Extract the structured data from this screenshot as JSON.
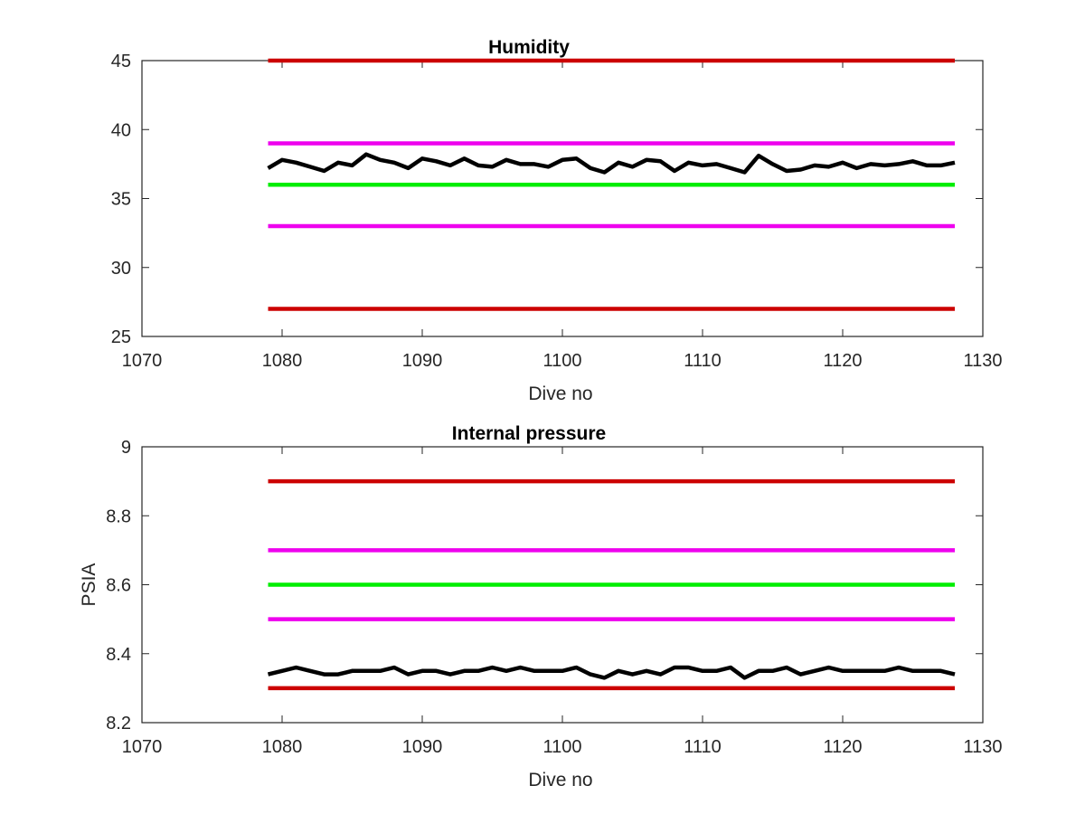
{
  "chart_data": [
    {
      "type": "line",
      "title": "Humidity",
      "xlabel": "Dive no",
      "ylabel": "",
      "xlim": [
        1070,
        1130
      ],
      "ylim": [
        25,
        45
      ],
      "xticks": [
        "1070",
        "1080",
        "1090",
        "1100",
        "1110",
        "1120",
        "1130"
      ],
      "yticks": [
        "25",
        "30",
        "35",
        "40",
        "45"
      ],
      "grid": false,
      "series": [
        {
          "color": "#cc0000",
          "x": [
            1079,
            1128
          ],
          "y": [
            45,
            45
          ]
        },
        {
          "color": "#ee00ee",
          "x": [
            1079,
            1128
          ],
          "y": [
            39,
            39
          ]
        },
        {
          "color": "#00ee00",
          "x": [
            1079,
            1128
          ],
          "y": [
            36,
            36
          ]
        },
        {
          "color": "#ee00ee",
          "x": [
            1079,
            1128
          ],
          "y": [
            33,
            33
          ]
        },
        {
          "color": "#cc0000",
          "x": [
            1079,
            1128
          ],
          "y": [
            27,
            27
          ]
        },
        {
          "color": "#000000",
          "x": [
            1079,
            1080,
            1081,
            1082,
            1083,
            1084,
            1085,
            1086,
            1087,
            1088,
            1089,
            1090,
            1091,
            1092,
            1093,
            1094,
            1095,
            1096,
            1097,
            1098,
            1099,
            1100,
            1101,
            1102,
            1103,
            1104,
            1105,
            1106,
            1107,
            1108,
            1109,
            1110,
            1111,
            1112,
            1113,
            1114,
            1115,
            1116,
            1117,
            1118,
            1119,
            1120,
            1121,
            1122,
            1123,
            1124,
            1125,
            1126,
            1127,
            1128
          ],
          "y": [
            37.2,
            37.8,
            37.6,
            37.3,
            37.0,
            37.6,
            37.4,
            38.2,
            37.8,
            37.6,
            37.2,
            37.9,
            37.7,
            37.4,
            37.9,
            37.4,
            37.3,
            37.8,
            37.5,
            37.5,
            37.3,
            37.8,
            37.9,
            37.2,
            36.9,
            37.6,
            37.3,
            37.8,
            37.7,
            37.0,
            37.6,
            37.4,
            37.5,
            37.2,
            36.9,
            38.1,
            37.5,
            37.0,
            37.1,
            37.4,
            37.3,
            37.6,
            37.2,
            37.5,
            37.4,
            37.5,
            37.7,
            37.4,
            37.4,
            37.6
          ]
        }
      ]
    },
    {
      "type": "line",
      "title": "Internal pressure",
      "xlabel": "Dive no",
      "ylabel": "PSIA",
      "xlim": [
        1070,
        1130
      ],
      "ylim": [
        8.2,
        9.0
      ],
      "xticks": [
        "1070",
        "1080",
        "1090",
        "1100",
        "1110",
        "1120",
        "1130"
      ],
      "yticks": [
        "8.2",
        "8.4",
        "8.6",
        "8.8",
        "9"
      ],
      "grid": false,
      "series": [
        {
          "color": "#cc0000",
          "x": [
            1079,
            1128
          ],
          "y": [
            8.9,
            8.9
          ]
        },
        {
          "color": "#ee00ee",
          "x": [
            1079,
            1128
          ],
          "y": [
            8.7,
            8.7
          ]
        },
        {
          "color": "#00ee00",
          "x": [
            1079,
            1128
          ],
          "y": [
            8.6,
            8.6
          ]
        },
        {
          "color": "#ee00ee",
          "x": [
            1079,
            1128
          ],
          "y": [
            8.5,
            8.5
          ]
        },
        {
          "color": "#cc0000",
          "x": [
            1079,
            1128
          ],
          "y": [
            8.3,
            8.3
          ]
        },
        {
          "color": "#000000",
          "x": [
            1079,
            1080,
            1081,
            1082,
            1083,
            1084,
            1085,
            1086,
            1087,
            1088,
            1089,
            1090,
            1091,
            1092,
            1093,
            1094,
            1095,
            1096,
            1097,
            1098,
            1099,
            1100,
            1101,
            1102,
            1103,
            1104,
            1105,
            1106,
            1107,
            1108,
            1109,
            1110,
            1111,
            1112,
            1113,
            1114,
            1115,
            1116,
            1117,
            1118,
            1119,
            1120,
            1121,
            1122,
            1123,
            1124,
            1125,
            1126,
            1127,
            1128
          ],
          "y": [
            8.34,
            8.35,
            8.36,
            8.35,
            8.34,
            8.34,
            8.35,
            8.35,
            8.35,
            8.36,
            8.34,
            8.35,
            8.35,
            8.34,
            8.35,
            8.35,
            8.36,
            8.35,
            8.36,
            8.35,
            8.35,
            8.35,
            8.36,
            8.34,
            8.33,
            8.35,
            8.34,
            8.35,
            8.34,
            8.36,
            8.36,
            8.35,
            8.35,
            8.36,
            8.33,
            8.35,
            8.35,
            8.36,
            8.34,
            8.35,
            8.36,
            8.35,
            8.35,
            8.35,
            8.35,
            8.36,
            8.35,
            8.35,
            8.35,
            8.34
          ]
        }
      ]
    }
  ]
}
